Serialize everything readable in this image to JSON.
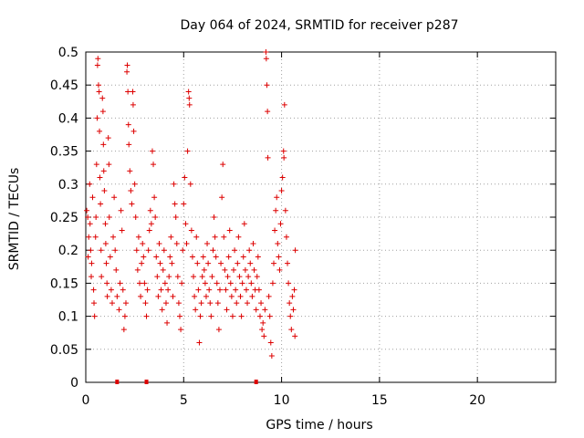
{
  "chart_data": {
    "type": "scatter",
    "title": "Day 064 of 2024, SRMTID for receiver p287",
    "xlabel": "GPS time / hours",
    "ylabel": "SRMTID / TECUs",
    "xlim": [
      0,
      24
    ],
    "ylim": [
      0,
      0.5
    ],
    "xticks": [
      0,
      5,
      10,
      15,
      20
    ],
    "yticks": [
      0,
      0.05,
      0.1,
      0.15,
      0.2,
      0.25,
      0.3,
      0.35,
      0.4,
      0.45,
      0.5
    ],
    "xtick_labels": [
      "0",
      "5",
      "10",
      "15",
      "20"
    ],
    "ytick_labels": [
      "0",
      "0.05",
      "0.1",
      "0.15",
      "0.2",
      "0.25",
      "0.3",
      "0.35",
      "0.4",
      "0.45",
      "0.5"
    ],
    "grid": true,
    "legend": "none",
    "marker": "+",
    "series": [
      {
        "name": "SRMTID",
        "color": "#dd0000",
        "points": [
          [
            0.05,
            0.26
          ],
          [
            0.1,
            0.25
          ],
          [
            0.12,
            0.19
          ],
          [
            0.15,
            0.22
          ],
          [
            0.2,
            0.3
          ],
          [
            0.22,
            0.24
          ],
          [
            0.25,
            0.2
          ],
          [
            0.28,
            0.16
          ],
          [
            0.3,
            0.18
          ],
          [
            0.35,
            0.28
          ],
          [
            0.4,
            0.14
          ],
          [
            0.42,
            0.12
          ],
          [
            0.45,
            0.1
          ],
          [
            0.5,
            0.22
          ],
          [
            0.52,
            0.25
          ],
          [
            0.55,
            0.33
          ],
          [
            0.58,
            0.4
          ],
          [
            0.6,
            0.48
          ],
          [
            0.62,
            0.49
          ],
          [
            0.65,
            0.45
          ],
          [
            0.68,
            0.44
          ],
          [
            0.7,
            0.38
          ],
          [
            0.72,
            0.31
          ],
          [
            0.75,
            0.27
          ],
          [
            0.78,
            0.2
          ],
          [
            0.8,
            0.16
          ],
          [
            0.85,
            0.43
          ],
          [
            0.88,
            0.41
          ],
          [
            0.9,
            0.36
          ],
          [
            0.92,
            0.32
          ],
          [
            0.95,
            0.29
          ],
          [
            1.0,
            0.24
          ],
          [
            1.02,
            0.21
          ],
          [
            1.05,
            0.18
          ],
          [
            1.08,
            0.15
          ],
          [
            1.1,
            0.13
          ],
          [
            1.15,
            0.37
          ],
          [
            1.18,
            0.33
          ],
          [
            1.2,
            0.25
          ],
          [
            1.25,
            0.19
          ],
          [
            1.3,
            0.14
          ],
          [
            1.35,
            0.12
          ],
          [
            1.4,
            0.22
          ],
          [
            1.45,
            0.28
          ],
          [
            1.5,
            0.2
          ],
          [
            1.55,
            0.17
          ],
          [
            1.6,
            0.13
          ],
          [
            1.7,
            0.11
          ],
          [
            1.75,
            0.15
          ],
          [
            1.8,
            0.26
          ],
          [
            1.85,
            0.23
          ],
          [
            1.9,
            0.14
          ],
          [
            1.95,
            0.08
          ],
          [
            2.0,
            0.1
          ],
          [
            2.05,
            0.12
          ],
          [
            2.1,
            0.47
          ],
          [
            2.12,
            0.48
          ],
          [
            2.15,
            0.44
          ],
          [
            2.18,
            0.39
          ],
          [
            2.2,
            0.36
          ],
          [
            2.25,
            0.32
          ],
          [
            2.3,
            0.29
          ],
          [
            2.35,
            0.27
          ],
          [
            2.4,
            0.44
          ],
          [
            2.42,
            0.42
          ],
          [
            2.45,
            0.38
          ],
          [
            2.5,
            0.3
          ],
          [
            2.55,
            0.25
          ],
          [
            2.6,
            0.2
          ],
          [
            2.65,
            0.17
          ],
          [
            2.7,
            0.22
          ],
          [
            2.75,
            0.15
          ],
          [
            2.8,
            0.13
          ],
          [
            2.85,
            0.18
          ],
          [
            2.9,
            0.21
          ],
          [
            2.95,
            0.19
          ],
          [
            3.0,
            0.15
          ],
          [
            3.05,
            0.12
          ],
          [
            3.1,
            0.1
          ],
          [
            3.15,
            0.14
          ],
          [
            3.2,
            0.2
          ],
          [
            3.25,
            0.23
          ],
          [
            3.3,
            0.26
          ],
          [
            3.35,
            0.24
          ],
          [
            3.4,
            0.35
          ],
          [
            3.45,
            0.33
          ],
          [
            3.5,
            0.28
          ],
          [
            3.55,
            0.25
          ],
          [
            3.6,
            0.19
          ],
          [
            3.65,
            0.16
          ],
          [
            3.7,
            0.13
          ],
          [
            3.75,
            0.21
          ],
          [
            3.8,
            0.18
          ],
          [
            3.85,
            0.14
          ],
          [
            3.9,
            0.11
          ],
          [
            3.95,
            0.17
          ],
          [
            4.0,
            0.2
          ],
          [
            4.05,
            0.15
          ],
          [
            4.1,
            0.12
          ],
          [
            4.15,
            0.09
          ],
          [
            4.2,
            0.14
          ],
          [
            4.25,
            0.16
          ],
          [
            4.3,
            0.19
          ],
          [
            4.35,
            0.22
          ],
          [
            4.4,
            0.18
          ],
          [
            4.45,
            0.13
          ],
          [
            4.5,
            0.3
          ],
          [
            4.55,
            0.27
          ],
          [
            4.6,
            0.25
          ],
          [
            4.65,
            0.21
          ],
          [
            4.7,
            0.16
          ],
          [
            4.75,
            0.12
          ],
          [
            4.8,
            0.1
          ],
          [
            4.85,
            0.08
          ],
          [
            4.9,
            0.15
          ],
          [
            4.95,
            0.2
          ],
          [
            5.0,
            0.27
          ],
          [
            5.05,
            0.31
          ],
          [
            5.1,
            0.24
          ],
          [
            5.15,
            0.21
          ],
          [
            5.2,
            0.35
          ],
          [
            5.25,
            0.44
          ],
          [
            5.28,
            0.43
          ],
          [
            5.3,
            0.42
          ],
          [
            5.35,
            0.3
          ],
          [
            5.4,
            0.23
          ],
          [
            5.45,
            0.19
          ],
          [
            5.5,
            0.16
          ],
          [
            5.55,
            0.13
          ],
          [
            5.6,
            0.11
          ],
          [
            5.65,
            0.22
          ],
          [
            5.7,
            0.18
          ],
          [
            5.75,
            0.14
          ],
          [
            5.8,
            0.06
          ],
          [
            5.85,
            0.1
          ],
          [
            5.9,
            0.12
          ],
          [
            5.95,
            0.16
          ],
          [
            6.0,
            0.19
          ],
          [
            6.05,
            0.17
          ],
          [
            6.1,
            0.15
          ],
          [
            6.15,
            0.13
          ],
          [
            6.2,
            0.21
          ],
          [
            6.25,
            0.18
          ],
          [
            6.3,
            0.14
          ],
          [
            6.35,
            0.12
          ],
          [
            6.4,
            0.1
          ],
          [
            6.45,
            0.16
          ],
          [
            6.5,
            0.2
          ],
          [
            6.55,
            0.25
          ],
          [
            6.6,
            0.22
          ],
          [
            6.65,
            0.19
          ],
          [
            6.7,
            0.15
          ],
          [
            6.75,
            0.12
          ],
          [
            6.8,
            0.08
          ],
          [
            6.85,
            0.14
          ],
          [
            6.9,
            0.18
          ],
          [
            6.95,
            0.28
          ],
          [
            7.0,
            0.33
          ],
          [
            7.05,
            0.22
          ],
          [
            7.1,
            0.17
          ],
          [
            7.15,
            0.14
          ],
          [
            7.2,
            0.11
          ],
          [
            7.25,
            0.16
          ],
          [
            7.3,
            0.19
          ],
          [
            7.35,
            0.23
          ],
          [
            7.4,
            0.15
          ],
          [
            7.45,
            0.13
          ],
          [
            7.5,
            0.1
          ],
          [
            7.55,
            0.17
          ],
          [
            7.6,
            0.2
          ],
          [
            7.65,
            0.14
          ],
          [
            7.7,
            0.12
          ],
          [
            7.75,
            0.18
          ],
          [
            7.8,
            0.22
          ],
          [
            7.85,
            0.16
          ],
          [
            7.9,
            0.13
          ],
          [
            7.95,
            0.1
          ],
          [
            8.0,
            0.15
          ],
          [
            8.05,
            0.19
          ],
          [
            8.1,
            0.24
          ],
          [
            8.15,
            0.17
          ],
          [
            8.2,
            0.14
          ],
          [
            8.25,
            0.12
          ],
          [
            8.3,
            0.16
          ],
          [
            8.35,
            0.2
          ],
          [
            8.4,
            0.18
          ],
          [
            8.45,
            0.15
          ],
          [
            8.5,
            0.13
          ],
          [
            8.55,
            0.21
          ],
          [
            8.6,
            0.17
          ],
          [
            8.65,
            0.14
          ],
          [
            8.7,
            0.11
          ],
          [
            8.75,
            0.16
          ],
          [
            8.8,
            0.19
          ],
          [
            8.85,
            0.14
          ],
          [
            8.9,
            0.1
          ],
          [
            8.95,
            0.12
          ],
          [
            9.0,
            0.08
          ],
          [
            9.05,
            0.09
          ],
          [
            9.1,
            0.07
          ],
          [
            9.15,
            0.11
          ],
          [
            9.2,
            0.5
          ],
          [
            9.22,
            0.49
          ],
          [
            9.25,
            0.45
          ],
          [
            9.28,
            0.41
          ],
          [
            9.3,
            0.34
          ],
          [
            9.35,
            0.13
          ],
          [
            9.4,
            0.1
          ],
          [
            9.45,
            0.06
          ],
          [
            9.5,
            0.04
          ],
          [
            9.55,
            0.15
          ],
          [
            9.6,
            0.18
          ],
          [
            9.65,
            0.23
          ],
          [
            9.7,
            0.26
          ],
          [
            9.75,
            0.28
          ],
          [
            9.8,
            0.21
          ],
          [
            9.85,
            0.19
          ],
          [
            9.9,
            0.17
          ],
          [
            9.95,
            0.24
          ],
          [
            10.0,
            0.29
          ],
          [
            10.05,
            0.31
          ],
          [
            10.1,
            0.35
          ],
          [
            10.12,
            0.34
          ],
          [
            10.15,
            0.42
          ],
          [
            10.2,
            0.26
          ],
          [
            10.25,
            0.22
          ],
          [
            10.3,
            0.18
          ],
          [
            10.35,
            0.15
          ],
          [
            10.4,
            0.12
          ],
          [
            10.45,
            0.1
          ],
          [
            10.5,
            0.08
          ],
          [
            10.55,
            0.13
          ],
          [
            10.6,
            0.11
          ],
          [
            10.65,
            0.14
          ],
          [
            10.68,
            0.07
          ],
          [
            10.7,
            0.2
          ]
        ]
      }
    ],
    "bottom_marks": [
      1.6,
      3.1,
      8.7
    ]
  }
}
